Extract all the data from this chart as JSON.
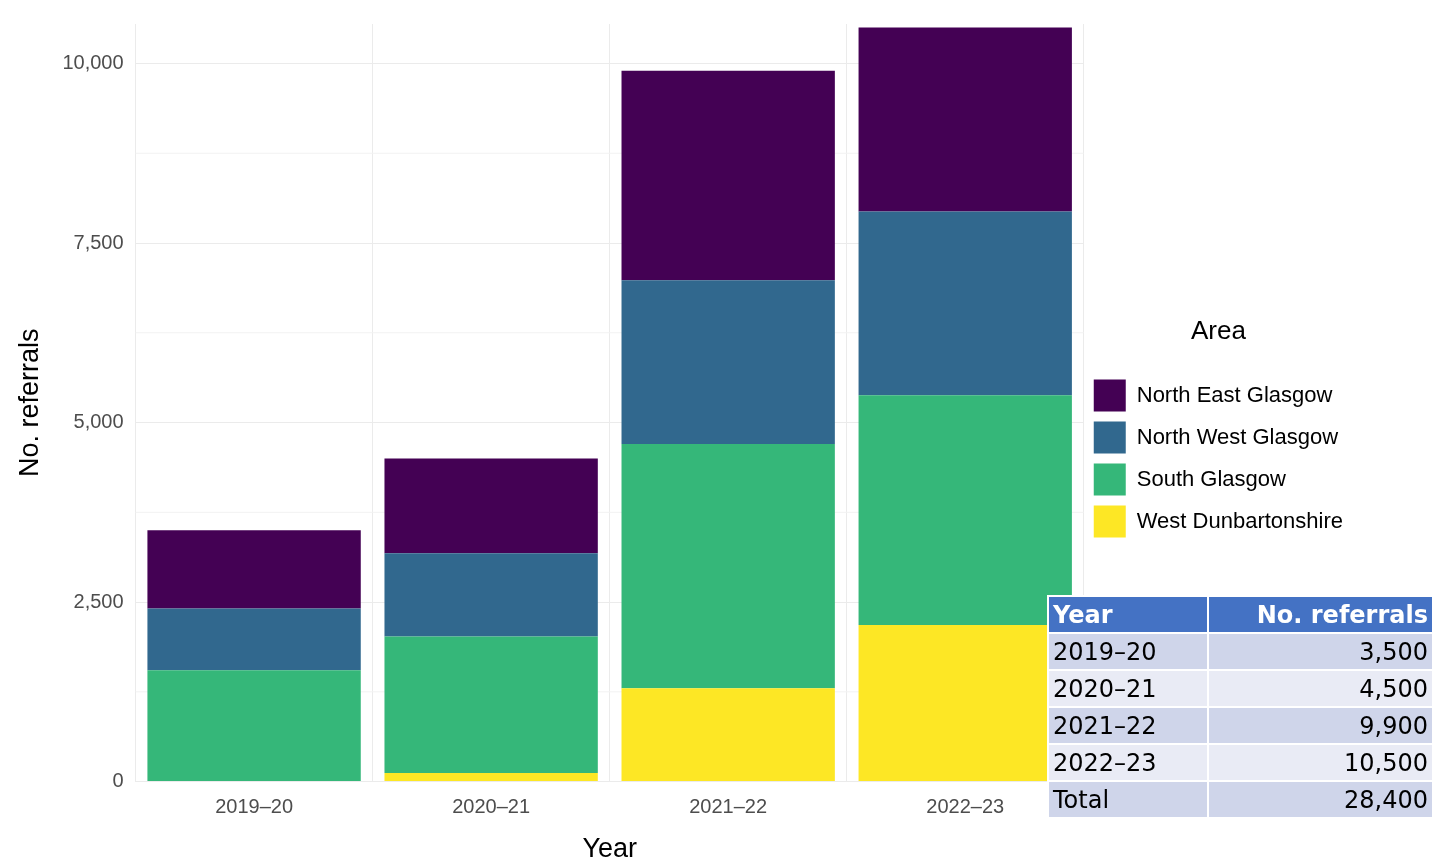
{
  "chart_data": {
    "type": "bar",
    "stacked": true,
    "xlabel": "Year",
    "ylabel": "No. referrals",
    "legend_title": "Area",
    "legend": "right",
    "grid": true,
    "categories": [
      "2019–20",
      "2020–21",
      "2021–22",
      "2022–23"
    ],
    "ylim": [
      0,
      10550
    ],
    "yticks": [
      0,
      {
        "value": 2500,
        "label": "2,500"
      },
      {
        "value": 5000,
        "label": "5,000"
      },
      {
        "value": 7500,
        "label": "7,500"
      },
      {
        "value": 10000,
        "label": "10,000"
      }
    ],
    "series": [
      {
        "name": "West Dunbartonshire",
        "color": "#fde725",
        "values": [
          0,
          120,
          1300,
          2180
        ]
      },
      {
        "name": "South Glasgow",
        "color": "#35b779",
        "values": [
          1550,
          1900,
          3400,
          3200
        ]
      },
      {
        "name": "North West Glasgow",
        "color": "#31688e",
        "values": [
          860,
          1160,
          2280,
          2560
        ]
      },
      {
        "name": "North East Glasgow",
        "color": "#440154",
        "values": [
          1090,
          1320,
          2920,
          2560
        ]
      }
    ],
    "annotations": [
      "Year",
      "No. referrals",
      "2019–20",
      "3,500",
      "2020–21",
      "4,500",
      "2021–22",
      "9,900",
      "2022–23",
      "10,500",
      "Total",
      "28,400"
    ]
  }
}
